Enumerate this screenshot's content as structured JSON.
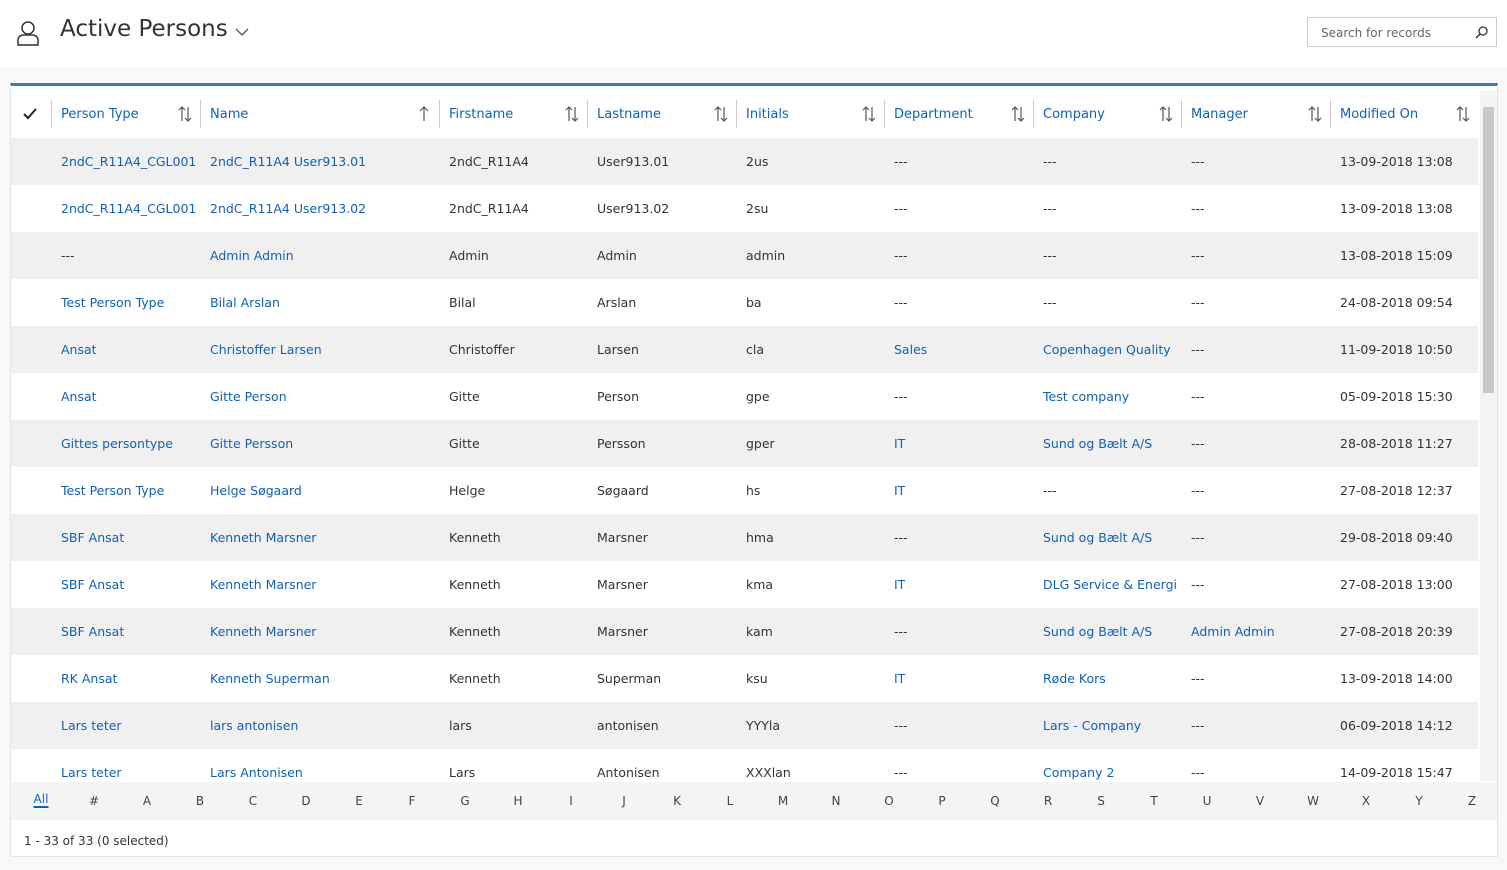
{
  "header": {
    "title": "Active Persons",
    "search_placeholder": "Search for records"
  },
  "table": {
    "columns": [
      "Person Type",
      "Name",
      "Firstname",
      "Lastname",
      "Initials",
      "Department",
      "Company",
      "Manager",
      "Modified On"
    ],
    "rows": [
      [
        "2ndC_R11A4_CGL001",
        "2ndC_R11A4 User913.01",
        "2ndC_R11A4",
        "User913.01",
        "2us",
        "---",
        "---",
        "---",
        "13-09-2018 13:08"
      ],
      [
        "2ndC_R11A4_CGL001",
        "2ndC_R11A4 User913.02",
        "2ndC_R11A4",
        "User913.02",
        "2su",
        "---",
        "---",
        "---",
        "13-09-2018 13:08"
      ],
      [
        "---",
        "Admin Admin",
        "Admin",
        "Admin",
        "admin",
        "---",
        "---",
        "---",
        "13-08-2018 15:09"
      ],
      [
        "Test Person Type",
        "Bilal Arslan",
        "Bilal",
        "Arslan",
        "ba",
        "---",
        "---",
        "---",
        "24-08-2018 09:54"
      ],
      [
        "Ansat",
        "Christoffer Larsen",
        "Christoffer",
        "Larsen",
        "cla",
        "Sales",
        "Copenhagen Quality",
        "---",
        "11-09-2018 10:50"
      ],
      [
        "Ansat",
        "Gitte Person",
        "Gitte",
        "Person",
        "gpe",
        "---",
        "Test company",
        "---",
        "05-09-2018 15:30"
      ],
      [
        "Gittes persontype",
        "Gitte Persson",
        "Gitte",
        "Persson",
        "gper",
        "IT",
        "Sund og Bælt A/S",
        "---",
        "28-08-2018 11:27"
      ],
      [
        "Test Person Type",
        "Helge Søgaard",
        "Helge",
        "Søgaard",
        "hs",
        "IT",
        "---",
        "---",
        "27-08-2018 12:37"
      ],
      [
        "SBF Ansat",
        "Kenneth Marsner",
        "Kenneth",
        "Marsner",
        "hma",
        "---",
        "Sund og Bælt A/S",
        "---",
        "29-08-2018 09:40"
      ],
      [
        "SBF Ansat",
        "Kenneth Marsner",
        "Kenneth",
        "Marsner",
        "kma",
        "IT",
        "DLG Service & Energi",
        "---",
        "27-08-2018 13:00"
      ],
      [
        "SBF Ansat",
        "Kenneth Marsner",
        "Kenneth",
        "Marsner",
        "kam",
        "---",
        "Sund og Bælt A/S",
        "Admin Admin",
        "27-08-2018 20:39"
      ],
      [
        "RK Ansat",
        "Kenneth Superman",
        "Kenneth",
        "Superman",
        "ksu",
        "IT",
        "Røde Kors",
        "---",
        "13-09-2018 14:00"
      ],
      [
        "Lars teter",
        "lars antonisen",
        "lars",
        "antonisen",
        "YYYla",
        "---",
        "Lars - Company",
        "---",
        "06-09-2018 14:12"
      ],
      [
        "Lars teter",
        "Lars Antonisen",
        "Lars",
        "Antonisen",
        "XXXlan",
        "---",
        "Company 2",
        "---",
        "14-09-2018 15:47"
      ]
    ]
  },
  "letters": [
    "All",
    "#",
    "A",
    "B",
    "C",
    "D",
    "E",
    "F",
    "G",
    "H",
    "I",
    "J",
    "K",
    "L",
    "M",
    "N",
    "O",
    "P",
    "Q",
    "R",
    "S",
    "T",
    "U",
    "V",
    "W",
    "X",
    "Y",
    "Z"
  ],
  "footer": {
    "status": "1 - 33 of 33 (0 selected)"
  }
}
